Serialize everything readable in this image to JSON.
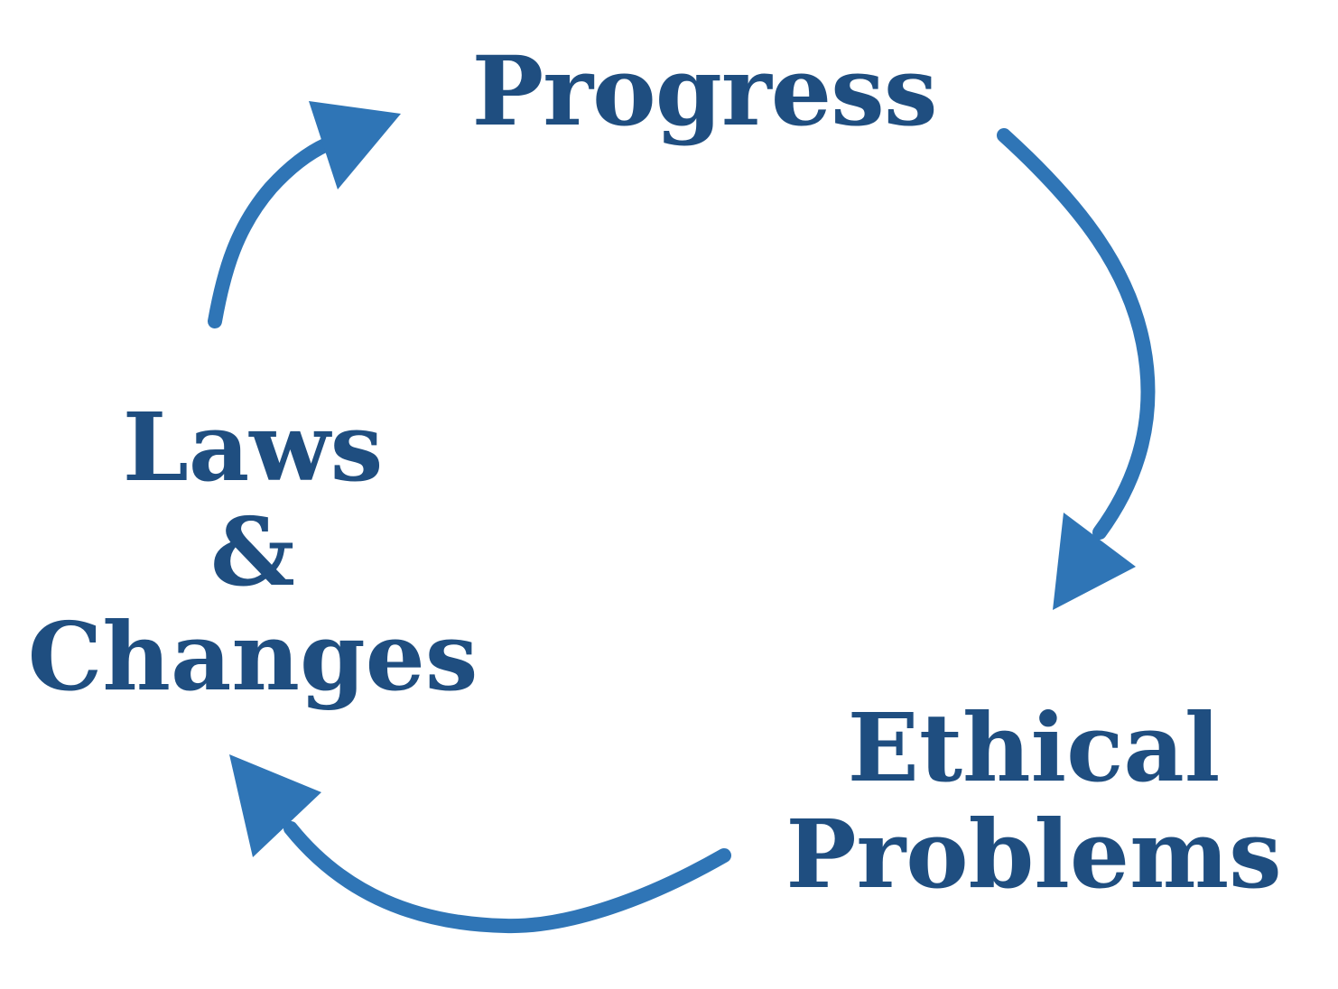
{
  "diagram": {
    "colors": {
      "text": "#1f4e80",
      "arrow": "#2f75b6",
      "background": "#ffffff"
    },
    "nodes": {
      "progress": {
        "lines": [
          "Progress"
        ]
      },
      "laws_changes": {
        "lines": [
          "Laws",
          "&",
          "Changes"
        ]
      },
      "ethical_problems": {
        "lines": [
          "Ethical",
          "Problems"
        ]
      }
    },
    "edges": [
      {
        "from": "progress",
        "to": "ethical_problems",
        "icon": "curved-arrow-icon"
      },
      {
        "from": "ethical_problems",
        "to": "laws_changes",
        "icon": "curved-arrow-icon"
      },
      {
        "from": "laws_changes",
        "to": "progress",
        "icon": "curved-arrow-icon"
      }
    ]
  }
}
